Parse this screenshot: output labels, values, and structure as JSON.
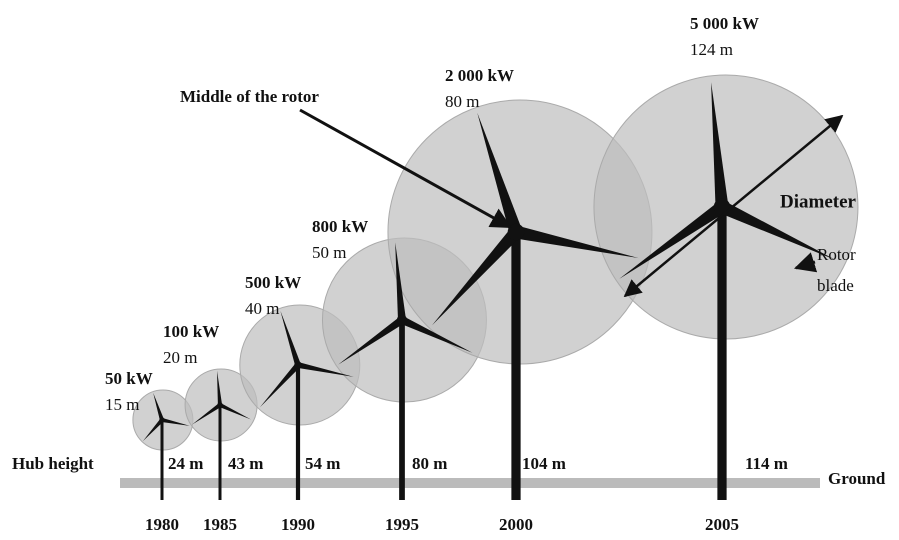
{
  "turbines": [
    {
      "year": "1980",
      "power": "50 kW",
      "diameter": "15 m",
      "hub_height": "24 m"
    },
    {
      "year": "1985",
      "power": "100 kW",
      "diameter": "20 m",
      "hub_height": "43 m"
    },
    {
      "year": "1990",
      "power": "500 kW",
      "diameter": "40 m",
      "hub_height": "54 m"
    },
    {
      "year": "1995",
      "power": "800 kW",
      "diameter": "50 m",
      "hub_height": "80 m"
    },
    {
      "year": "2000",
      "power": "2 000 kW",
      "diameter": "80 m",
      "hub_height": "104 m"
    },
    {
      "year": "2005",
      "power": "5 000 kW",
      "diameter": "124 m",
      "hub_height": "114 m"
    }
  ],
  "labels": {
    "hub_height": "Hub height",
    "ground": "Ground",
    "middle_of_rotor": "Middle of the rotor",
    "diameter": "Diameter",
    "rotor_blade": [
      "Rotor",
      "blade"
    ]
  }
}
